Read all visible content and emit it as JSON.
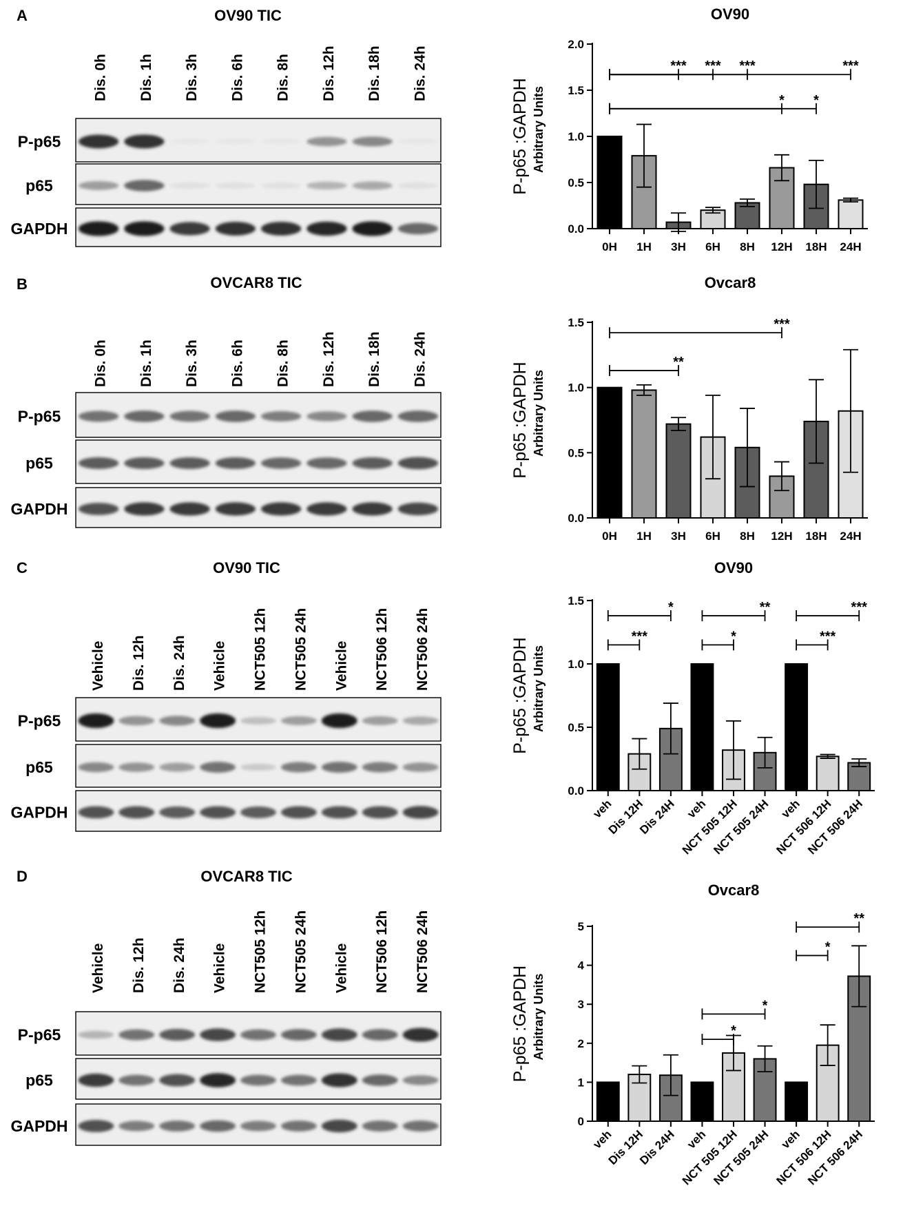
{
  "figure": {
    "panels": [
      {
        "letter": "A",
        "blot": {
          "title": "OV90 TIC",
          "lanes": [
            "Dis. 0h",
            "Dis. 1h",
            "Dis. 3h",
            "Dis. 6h",
            "Dis. 8h",
            "Dis. 12h",
            "Dis. 18h",
            "Dis. 24h"
          ],
          "rows": [
            {
              "label": "P-p65",
              "bands": [
                0.85,
                0.85,
                0.02,
                0.02,
                0.02,
                0.4,
                0.45,
                0.02
              ]
            },
            {
              "label": "p65",
              "bands": [
                0.35,
                0.6,
                0.05,
                0.05,
                0.05,
                0.25,
                0.3,
                0.05
              ]
            },
            {
              "label": "GAPDH",
              "bands": [
                0.95,
                0.95,
                0.8,
                0.85,
                0.85,
                0.9,
                0.95,
                0.6
              ]
            }
          ]
        }
      },
      {
        "letter": "B",
        "blot": {
          "title": "OVCAR8 TIC",
          "lanes": [
            "Dis. 0h",
            "Dis. 1h",
            "Dis. 3h",
            "Dis. 6h",
            "Dis. 8h",
            "Dis. 12h",
            "Dis. 18h",
            "Dis. 24h"
          ],
          "rows": [
            {
              "label": "P-p65",
              "bands": [
                0.55,
                0.6,
                0.55,
                0.6,
                0.5,
                0.45,
                0.6,
                0.6
              ]
            },
            {
              "label": "p65",
              "bands": [
                0.65,
                0.65,
                0.65,
                0.65,
                0.6,
                0.6,
                0.65,
                0.7
              ]
            },
            {
              "label": "GAPDH",
              "bands": [
                0.7,
                0.8,
                0.8,
                0.8,
                0.8,
                0.8,
                0.8,
                0.75
              ]
            }
          ]
        }
      },
      {
        "letter": "C",
        "blot": {
          "title": "OV90 TIC",
          "lanes": [
            "Vehicle",
            "Dis. 12h",
            "Dis. 24h",
            "Vehicle",
            "NCT505 12h",
            "NCT505 24h",
            "Vehicle",
            "NCT506 12h",
            "NCT506 24h"
          ],
          "rows": [
            {
              "label": "P-p65",
              "bands": [
                0.95,
                0.4,
                0.45,
                0.95,
                0.2,
                0.35,
                0.95,
                0.35,
                0.3
              ]
            },
            {
              "label": "p65",
              "bands": [
                0.45,
                0.4,
                0.35,
                0.55,
                0.15,
                0.5,
                0.55,
                0.5,
                0.4
              ]
            },
            {
              "label": "GAPDH",
              "bands": [
                0.7,
                0.7,
                0.65,
                0.7,
                0.65,
                0.7,
                0.7,
                0.7,
                0.75
              ]
            }
          ]
        }
      },
      {
        "letter": "D",
        "blot": {
          "title": "OVCAR8 TIC",
          "lanes": [
            "Vehicle",
            "Dis. 12h",
            "Dis. 24h",
            "Vehicle",
            "NCT505 12h",
            "NCT505 24h",
            "Vehicle",
            "NCT506 12h",
            "NCT506 24h"
          ],
          "rows": [
            {
              "label": "P-p65",
              "bands": [
                0.25,
                0.55,
                0.65,
                0.75,
                0.55,
                0.6,
                0.75,
                0.6,
                0.85
              ]
            },
            {
              "label": "p65",
              "bands": [
                0.8,
                0.55,
                0.7,
                0.9,
                0.55,
                0.55,
                0.85,
                0.6,
                0.45
              ]
            },
            {
              "label": "GAPDH",
              "bands": [
                0.7,
                0.5,
                0.55,
                0.6,
                0.5,
                0.55,
                0.75,
                0.55,
                0.55
              ]
            }
          ]
        }
      }
    ]
  },
  "chart_data": [
    {
      "type": "bar",
      "title": "OV90",
      "ylabel": "P-p65 :GAPDH",
      "ylabel2": "Arbitrary Units",
      "ylim": [
        0,
        2.0
      ],
      "yticks": [
        "0.0",
        "0.5",
        "1.0",
        "1.5",
        "2.0"
      ],
      "categories": [
        "0H",
        "1H",
        "3H",
        "6H",
        "8H",
        "12H",
        "18H",
        "24H"
      ],
      "values": [
        1.0,
        0.79,
        0.07,
        0.2,
        0.28,
        0.66,
        0.48,
        0.31
      ],
      "errors": [
        0,
        0.34,
        0.1,
        0.03,
        0.04,
        0.14,
        0.26,
        0.02
      ],
      "colors": [
        "#000000",
        "#9a9a9a",
        "#5c5c5c",
        "#d6d6d6",
        "#5c5c5c",
        "#9a9a9a",
        "#5c5c5c",
        "#e0e0e0"
      ],
      "significance": [
        {
          "from": 0,
          "to": 2,
          "label": "***",
          "level": 1.67
        },
        {
          "from": 0,
          "to": 3,
          "label": "***",
          "level": 1.67
        },
        {
          "from": 0,
          "to": 4,
          "label": "***",
          "level": 1.67
        },
        {
          "from": 0,
          "to": 7,
          "label": "***",
          "level": 1.67
        },
        {
          "from": 0,
          "to": 5,
          "label": "*",
          "level": 1.3
        },
        {
          "from": 0,
          "to": 6,
          "label": "*",
          "level": 1.3
        }
      ]
    },
    {
      "type": "bar",
      "title": "Ovcar8",
      "ylabel": "P-p65 :GAPDH",
      "ylabel2": "Arbitrary Units",
      "ylim": [
        0,
        1.5
      ],
      "yticks": [
        "0.0",
        "0.5",
        "1.0",
        "1.5"
      ],
      "categories": [
        "0H",
        "1H",
        "3H",
        "6H",
        "8H",
        "12H",
        "18H",
        "24H"
      ],
      "values": [
        1.0,
        0.98,
        0.72,
        0.62,
        0.54,
        0.32,
        0.74,
        0.82
      ],
      "errors": [
        0,
        0.04,
        0.05,
        0.32,
        0.3,
        0.11,
        0.32,
        0.47
      ],
      "colors": [
        "#000000",
        "#9a9a9a",
        "#5c5c5c",
        "#d6d6d6",
        "#5c5c5c",
        "#9a9a9a",
        "#5c5c5c",
        "#e0e0e0"
      ],
      "significance": [
        {
          "from": 0,
          "to": 5,
          "label": "***",
          "level": 1.42
        },
        {
          "from": 0,
          "to": 2,
          "label": "**",
          "level": 1.13
        }
      ]
    },
    {
      "type": "bar",
      "title": "OV90",
      "ylabel": "P-p65 :GAPDH",
      "ylabel2": "Arbitrary Units",
      "ylim": [
        0,
        1.5
      ],
      "yticks": [
        "0.0",
        "0.5",
        "1.0",
        "1.5"
      ],
      "categories": [
        "veh",
        "Dis 12H",
        "Dis 24H",
        "veh",
        "NCT 505 12H",
        "NCT 505 24H",
        "veh",
        "NCT 506 12H",
        "NCT 506 24H"
      ],
      "values": [
        1.0,
        0.29,
        0.49,
        1.0,
        0.32,
        0.3,
        1.0,
        0.27,
        0.22
      ],
      "errors": [
        0,
        0.12,
        0.2,
        0,
        0.23,
        0.12,
        0,
        0.015,
        0.03
      ],
      "colors": [
        "#000000",
        "#d6d6d6",
        "#777777",
        "#000000",
        "#d6d6d6",
        "#777777",
        "#000000",
        "#d6d6d6",
        "#777777"
      ],
      "significance": [
        {
          "from": 0,
          "to": 2,
          "label": "*",
          "level": 1.38
        },
        {
          "from": 0,
          "to": 1,
          "label": "***",
          "level": 1.15
        },
        {
          "from": 3,
          "to": 5,
          "label": "**",
          "level": 1.38
        },
        {
          "from": 3,
          "to": 4,
          "label": "*",
          "level": 1.15
        },
        {
          "from": 6,
          "to": 8,
          "label": "***",
          "level": 1.38
        },
        {
          "from": 6,
          "to": 7,
          "label": "***",
          "level": 1.15
        }
      ]
    },
    {
      "type": "bar",
      "title": "Ovcar8",
      "ylabel": "P-p65 :GAPDH",
      "ylabel2": "Arbitrary Units",
      "ylim": [
        0,
        5
      ],
      "yticks": [
        "0",
        "1",
        "2",
        "3",
        "4",
        "5"
      ],
      "categories": [
        "veh",
        "Dis 12H",
        "Dis 24H",
        "veh",
        "NCT 505 12H",
        "NCT 505 24H",
        "veh",
        "NCT 506 12H",
        "NCT 506 24H"
      ],
      "values": [
        1.0,
        1.2,
        1.18,
        1.0,
        1.75,
        1.6,
        1.0,
        1.95,
        3.72
      ],
      "errors": [
        0,
        0.22,
        0.52,
        0,
        0.45,
        0.33,
        0,
        0.52,
        0.78
      ],
      "colors": [
        "#000000",
        "#d6d6d6",
        "#777777",
        "#000000",
        "#d6d6d6",
        "#777777",
        "#000000",
        "#d6d6d6",
        "#777777"
      ],
      "significance": [
        {
          "from": 3,
          "to": 5,
          "label": "*",
          "level": 2.75
        },
        {
          "from": 3,
          "to": 4,
          "label": "*",
          "level": 2.1
        },
        {
          "from": 6,
          "to": 8,
          "label": "**",
          "level": 4.98
        },
        {
          "from": 6,
          "to": 7,
          "label": "*",
          "level": 4.25
        }
      ]
    }
  ]
}
